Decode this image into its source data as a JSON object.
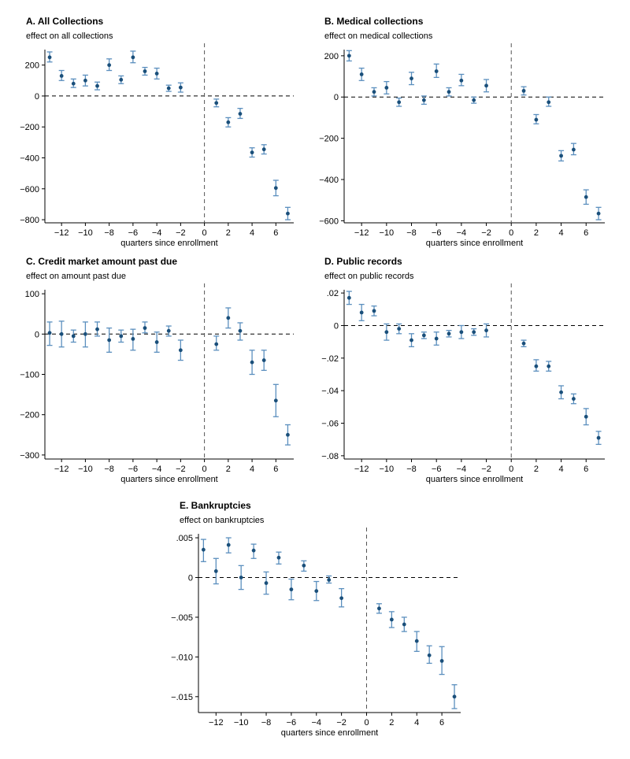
{
  "chart_data": [
    {
      "id": "A",
      "type": "scatter",
      "title": "A. All Collections",
      "ylabel": "effect on all collections",
      "xlabel": "quarters since enrollment",
      "xlim": [
        -13.4,
        7.5
      ],
      "ylim": [
        -820,
        300
      ],
      "xticks": [
        -12,
        -10,
        -8,
        -6,
        -4,
        -2,
        0,
        2,
        4,
        6
      ],
      "xtick_labels": [
        "−12",
        "−10",
        "−8",
        "−6",
        "−4",
        "−2",
        "0",
        "2",
        "4",
        "6"
      ],
      "yticks": [
        200,
        0,
        -200,
        -400,
        -600,
        -800
      ],
      "ytick_labels": [
        "200",
        "0",
        "−200",
        "−400",
        "−600",
        "−800"
      ],
      "colors": {
        "point": "#1a4f7a",
        "error_bar": "#5b8fbe"
      },
      "points": [
        {
          "x": -13,
          "y": 250,
          "lo": 220,
          "hi": 285
        },
        {
          "x": -12,
          "y": 130,
          "lo": 100,
          "hi": 165
        },
        {
          "x": -11,
          "y": 80,
          "lo": 55,
          "hi": 110
        },
        {
          "x": -10,
          "y": 100,
          "lo": 65,
          "hi": 135
        },
        {
          "x": -9,
          "y": 65,
          "lo": 40,
          "hi": 90
        },
        {
          "x": -8,
          "y": 200,
          "lo": 165,
          "hi": 240
        },
        {
          "x": -7,
          "y": 105,
          "lo": 80,
          "hi": 130
        },
        {
          "x": -6,
          "y": 250,
          "lo": 215,
          "hi": 290
        },
        {
          "x": -5,
          "y": 160,
          "lo": 135,
          "hi": 185
        },
        {
          "x": -4,
          "y": 145,
          "lo": 110,
          "hi": 180
        },
        {
          "x": -3,
          "y": 50,
          "lo": 30,
          "hi": 70
        },
        {
          "x": -2,
          "y": 55,
          "lo": 25,
          "hi": 85
        },
        {
          "x": 1,
          "y": -45,
          "lo": -70,
          "hi": -20
        },
        {
          "x": 2,
          "y": -170,
          "lo": -200,
          "hi": -140
        },
        {
          "x": 3,
          "y": -115,
          "lo": -145,
          "hi": -80
        },
        {
          "x": 4,
          "y": -365,
          "lo": -395,
          "hi": -335
        },
        {
          "x": 5,
          "y": -345,
          "lo": -375,
          "hi": -315
        },
        {
          "x": 6,
          "y": -595,
          "lo": -645,
          "hi": -545
        },
        {
          "x": 7,
          "y": -760,
          "lo": -800,
          "hi": -720
        }
      ]
    },
    {
      "id": "B",
      "type": "scatter",
      "title": "B. Medical collections",
      "ylabel": "effect on medical collections",
      "xlabel": "quarters since enrollment",
      "xlim": [
        -13.4,
        7.5
      ],
      "ylim": [
        -610,
        230
      ],
      "xticks": [
        -12,
        -10,
        -8,
        -6,
        -4,
        -2,
        0,
        2,
        4,
        6
      ],
      "xtick_labels": [
        "−12",
        "−10",
        "−8",
        "−6",
        "−4",
        "−2",
        "0",
        "2",
        "4",
        "6"
      ],
      "yticks": [
        200,
        0,
        -200,
        -400,
        -600
      ],
      "ytick_labels": [
        "200",
        "0",
        "−200",
        "−400",
        "−600"
      ],
      "colors": {
        "point": "#1a4f7a",
        "error_bar": "#5b8fbe"
      },
      "points": [
        {
          "x": -13,
          "y": 200,
          "lo": 175,
          "hi": 225
        },
        {
          "x": -12,
          "y": 110,
          "lo": 80,
          "hi": 140
        },
        {
          "x": -11,
          "y": 25,
          "lo": 5,
          "hi": 45
        },
        {
          "x": -10,
          "y": 45,
          "lo": 15,
          "hi": 75
        },
        {
          "x": -9,
          "y": -25,
          "lo": -45,
          "hi": -5
        },
        {
          "x": -8,
          "y": 90,
          "lo": 60,
          "hi": 120
        },
        {
          "x": -7,
          "y": -15,
          "lo": -35,
          "hi": 5
        },
        {
          "x": -6,
          "y": 125,
          "lo": 95,
          "hi": 160
        },
        {
          "x": -5,
          "y": 25,
          "lo": 5,
          "hi": 45
        },
        {
          "x": -4,
          "y": 80,
          "lo": 55,
          "hi": 110
        },
        {
          "x": -3,
          "y": -15,
          "lo": -30,
          "hi": 0
        },
        {
          "x": -2,
          "y": 55,
          "lo": 25,
          "hi": 85
        },
        {
          "x": 1,
          "y": 30,
          "lo": 10,
          "hi": 50
        },
        {
          "x": 2,
          "y": -110,
          "lo": -130,
          "hi": -85
        },
        {
          "x": 3,
          "y": -25,
          "lo": -45,
          "hi": 0
        },
        {
          "x": 4,
          "y": -285,
          "lo": -310,
          "hi": -260
        },
        {
          "x": 5,
          "y": -255,
          "lo": -280,
          "hi": -225
        },
        {
          "x": 6,
          "y": -485,
          "lo": -520,
          "hi": -450
        },
        {
          "x": 7,
          "y": -565,
          "lo": -595,
          "hi": -535
        }
      ]
    },
    {
      "id": "C",
      "type": "scatter",
      "title": "C. Credit market amount past due",
      "ylabel": "effect on amount past due",
      "xlabel": "quarters since enrollment",
      "xlim": [
        -13.4,
        7.5
      ],
      "ylim": [
        -310,
        110
      ],
      "xticks": [
        -12,
        -10,
        -8,
        -6,
        -4,
        -2,
        0,
        2,
        4,
        6
      ],
      "xtick_labels": [
        "−12",
        "−10",
        "−8",
        "−6",
        "−4",
        "−2",
        "0",
        "2",
        "4",
        "6"
      ],
      "yticks": [
        100,
        0,
        -100,
        -200,
        -300
      ],
      "ytick_labels": [
        "100",
        "0",
        "−100",
        "−200",
        "−300"
      ],
      "colors": {
        "point": "#1a4f7a",
        "error_bar": "#5b8fbe"
      },
      "points": [
        {
          "x": -13,
          "y": 3,
          "lo": -28,
          "hi": 30
        },
        {
          "x": -12,
          "y": 0,
          "lo": -32,
          "hi": 32
        },
        {
          "x": -11,
          "y": -5,
          "lo": -20,
          "hi": 10
        },
        {
          "x": -10,
          "y": 0,
          "lo": -32,
          "hi": 30
        },
        {
          "x": -9,
          "y": 12,
          "lo": -5,
          "hi": 30
        },
        {
          "x": -8,
          "y": -15,
          "lo": -45,
          "hi": 15
        },
        {
          "x": -7,
          "y": -5,
          "lo": -20,
          "hi": 10
        },
        {
          "x": -6,
          "y": -12,
          "lo": -40,
          "hi": 12
        },
        {
          "x": -5,
          "y": 15,
          "lo": 3,
          "hi": 30
        },
        {
          "x": -4,
          "y": -20,
          "lo": -45,
          "hi": 5
        },
        {
          "x": -3,
          "y": 8,
          "lo": -5,
          "hi": 20
        },
        {
          "x": -2,
          "y": -40,
          "lo": -65,
          "hi": -15
        },
        {
          "x": 1,
          "y": -25,
          "lo": -40,
          "hi": -5
        },
        {
          "x": 2,
          "y": 40,
          "lo": 15,
          "hi": 65
        },
        {
          "x": 3,
          "y": 8,
          "lo": -15,
          "hi": 28
        },
        {
          "x": 4,
          "y": -70,
          "lo": -100,
          "hi": -40
        },
        {
          "x": 5,
          "y": -65,
          "lo": -90,
          "hi": -40
        },
        {
          "x": 6,
          "y": -165,
          "lo": -205,
          "hi": -125
        },
        {
          "x": 7,
          "y": -250,
          "lo": -275,
          "hi": -225
        }
      ]
    },
    {
      "id": "D",
      "type": "scatter",
      "title": "D. Public records",
      "ylabel": "effect on public records",
      "xlabel": "quarters since enrollment",
      "xlim": [
        -13.4,
        7.5
      ],
      "ylim": [
        -0.082,
        0.022
      ],
      "xticks": [
        -12,
        -10,
        -8,
        -6,
        -4,
        -2,
        0,
        2,
        4,
        6
      ],
      "xtick_labels": [
        "−12",
        "−10",
        "−8",
        "−6",
        "−4",
        "−2",
        "0",
        "2",
        "4",
        "6"
      ],
      "yticks": [
        0.02,
        0,
        -0.02,
        -0.04,
        -0.06,
        -0.08
      ],
      "ytick_labels": [
        ".02",
        "0",
        "−.02",
        "−.04",
        "−.06",
        "−.08"
      ],
      "colors": {
        "point": "#1a4f7a",
        "error_bar": "#5b8fbe"
      },
      "points": [
        {
          "x": -13,
          "y": 0.017,
          "lo": 0.013,
          "hi": 0.021
        },
        {
          "x": -12,
          "y": 0.008,
          "lo": 0.003,
          "hi": 0.013
        },
        {
          "x": -11,
          "y": 0.009,
          "lo": 0.006,
          "hi": 0.012
        },
        {
          "x": -10,
          "y": -0.004,
          "lo": -0.009,
          "hi": 0.001
        },
        {
          "x": -9,
          "y": -0.002,
          "lo": -0.005,
          "hi": 0.001
        },
        {
          "x": -8,
          "y": -0.009,
          "lo": -0.013,
          "hi": -0.005
        },
        {
          "x": -7,
          "y": -0.006,
          "lo": -0.008,
          "hi": -0.004
        },
        {
          "x": -6,
          "y": -0.008,
          "lo": -0.012,
          "hi": -0.004
        },
        {
          "x": -5,
          "y": -0.005,
          "lo": -0.007,
          "hi": -0.003
        },
        {
          "x": -4,
          "y": -0.004,
          "lo": -0.008,
          "hi": 0.0
        },
        {
          "x": -3,
          "y": -0.004,
          "lo": -0.006,
          "hi": -0.002
        },
        {
          "x": -2,
          "y": -0.003,
          "lo": -0.007,
          "hi": 0.001
        },
        {
          "x": 1,
          "y": -0.011,
          "lo": -0.013,
          "hi": -0.009
        },
        {
          "x": 2,
          "y": -0.025,
          "lo": -0.028,
          "hi": -0.021
        },
        {
          "x": 3,
          "y": -0.025,
          "lo": -0.028,
          "hi": -0.022
        },
        {
          "x": 4,
          "y": -0.041,
          "lo": -0.045,
          "hi": -0.037
        },
        {
          "x": 5,
          "y": -0.045,
          "lo": -0.048,
          "hi": -0.042
        },
        {
          "x": 6,
          "y": -0.056,
          "lo": -0.061,
          "hi": -0.051
        },
        {
          "x": 7,
          "y": -0.069,
          "lo": -0.073,
          "hi": -0.065
        }
      ]
    },
    {
      "id": "E",
      "type": "scatter",
      "title": "E. Bankruptcies",
      "ylabel": "effect on bankruptcies",
      "xlabel": "quarters since enrollment",
      "xlim": [
        -13.4,
        7.5
      ],
      "ylim": [
        -0.017,
        0.0055
      ],
      "xticks": [
        -12,
        -10,
        -8,
        -6,
        -4,
        -2,
        0,
        2,
        4,
        6
      ],
      "xtick_labels": [
        "−12",
        "−10",
        "−8",
        "−6",
        "−4",
        "−2",
        "0",
        "2",
        "4",
        "6"
      ],
      "yticks": [
        0.005,
        0,
        -0.005,
        -0.01,
        -0.015
      ],
      "ytick_labels": [
        ".005",
        "0",
        "−.005",
        "−.010",
        "−.015"
      ],
      "colors": {
        "point": "#1a4f7a",
        "error_bar": "#5b8fbe"
      },
      "points": [
        {
          "x": -13,
          "y": 0.0035,
          "lo": 0.002,
          "hi": 0.0048
        },
        {
          "x": -12,
          "y": 0.0008,
          "lo": -0.0008,
          "hi": 0.0024
        },
        {
          "x": -11,
          "y": 0.0041,
          "lo": 0.0031,
          "hi": 0.005
        },
        {
          "x": -10,
          "y": 0.0,
          "lo": -0.0015,
          "hi": 0.0015
        },
        {
          "x": -9,
          "y": 0.0034,
          "lo": 0.0024,
          "hi": 0.0042
        },
        {
          "x": -8,
          "y": -0.0007,
          "lo": -0.0021,
          "hi": 0.0007
        },
        {
          "x": -7,
          "y": 0.0025,
          "lo": 0.0017,
          "hi": 0.0032
        },
        {
          "x": -6,
          "y": -0.0015,
          "lo": -0.0028,
          "hi": -0.0002
        },
        {
          "x": -5,
          "y": 0.0015,
          "lo": 0.0008,
          "hi": 0.0021
        },
        {
          "x": -4,
          "y": -0.0017,
          "lo": -0.0029,
          "hi": -0.0005
        },
        {
          "x": -3,
          "y": -0.0003,
          "lo": -0.0007,
          "hi": 0.0002
        },
        {
          "x": -2,
          "y": -0.0026,
          "lo": -0.0037,
          "hi": -0.0014
        },
        {
          "x": 1,
          "y": -0.0039,
          "lo": -0.0045,
          "hi": -0.0033
        },
        {
          "x": 2,
          "y": -0.0053,
          "lo": -0.0063,
          "hi": -0.0043
        },
        {
          "x": 3,
          "y": -0.0059,
          "lo": -0.0068,
          "hi": -0.005
        },
        {
          "x": 4,
          "y": -0.008,
          "lo": -0.0093,
          "hi": -0.0068
        },
        {
          "x": 5,
          "y": -0.0098,
          "lo": -0.0108,
          "hi": -0.0086
        },
        {
          "x": 6,
          "y": -0.0105,
          "lo": -0.0122,
          "hi": -0.0087
        },
        {
          "x": 7,
          "y": -0.015,
          "lo": -0.0165,
          "hi": -0.0135
        }
      ]
    }
  ]
}
